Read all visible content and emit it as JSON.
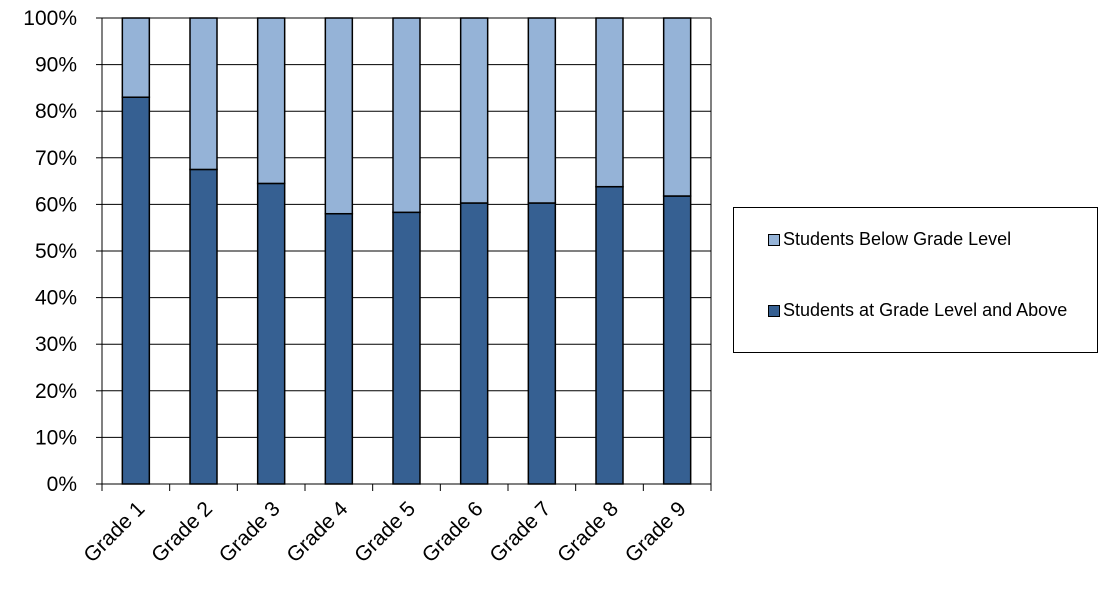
{
  "chart_data": {
    "type": "bar",
    "stacked": true,
    "categories": [
      "Grade 1",
      "Grade 2",
      "Grade 3",
      "Grade 4",
      "Grade 5",
      "Grade 6",
      "Grade 7",
      "Grade 8",
      "Grade 9"
    ],
    "series": [
      {
        "name": "Students at Grade Level and Above",
        "color": "#366092",
        "values": [
          83,
          67.5,
          64.5,
          58,
          58.3,
          60.3,
          60.3,
          63.8,
          61.8
        ]
      },
      {
        "name": "Students Below Grade Level",
        "color": "#95B3D7",
        "values": [
          17,
          32.5,
          35.5,
          42,
          41.7,
          39.7,
          39.7,
          36.2,
          38.2
        ]
      }
    ],
    "yticks": [
      "0%",
      "10%",
      "20%",
      "30%",
      "40%",
      "50%",
      "60%",
      "70%",
      "80%",
      "90%",
      "100%"
    ],
    "ylim": [
      0,
      100
    ],
    "grid": true,
    "legend_position": "right",
    "title": "",
    "xlabel": "",
    "ylabel": ""
  }
}
